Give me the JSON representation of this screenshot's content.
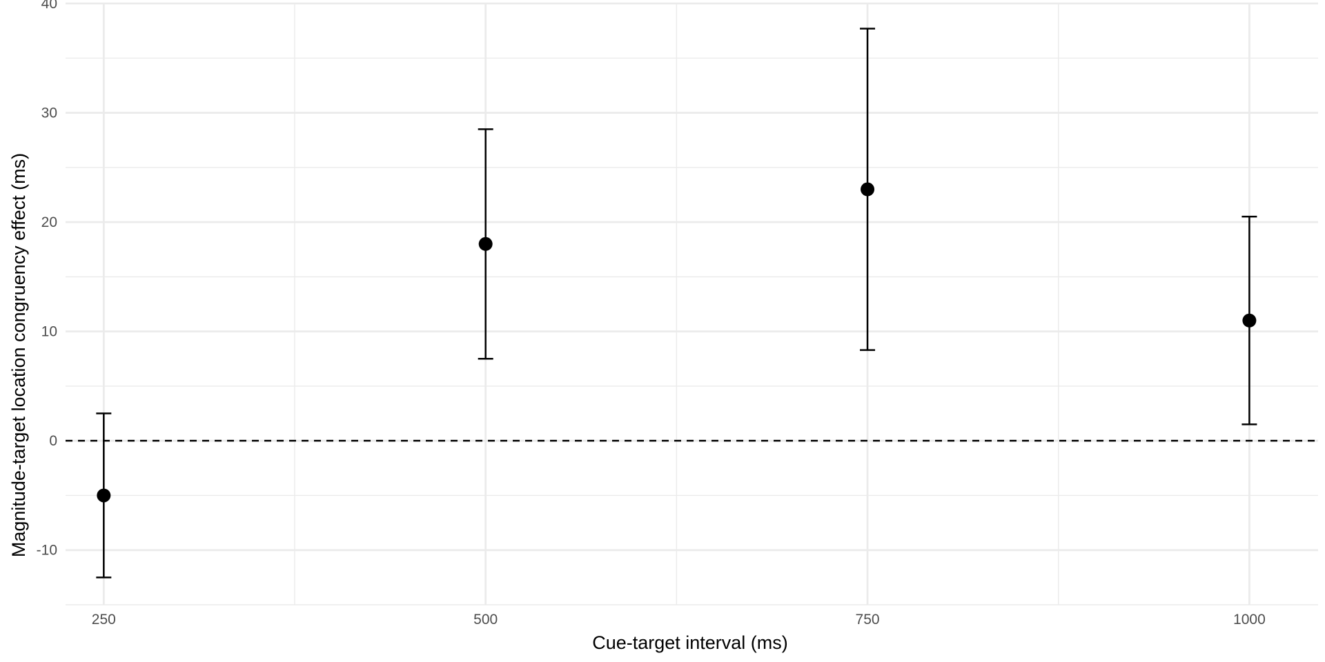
{
  "chart_data": {
    "type": "scatter",
    "title": "",
    "xlabel": "Cue-target interval (ms)",
    "ylabel": "Magnitude-target location congruency effect (ms)",
    "x_ticks": [
      250,
      500,
      750,
      1000
    ],
    "y_ticks": [
      -10,
      0,
      10,
      20,
      30,
      40
    ],
    "xlim": [
      225,
      1045
    ],
    "ylim": [
      -15,
      40
    ],
    "grid": true,
    "legend": "none",
    "reference_line": {
      "y": 0,
      "style": "dashed"
    },
    "points": [
      {
        "x": 250,
        "y": -5,
        "lower": -12.5,
        "upper": 2.5
      },
      {
        "x": 500,
        "y": 18,
        "lower": 7.5,
        "upper": 28.5
      },
      {
        "x": 750,
        "y": 23,
        "lower": 8.3,
        "upper": 37.7
      },
      {
        "x": 1000,
        "y": 11,
        "lower": 1.5,
        "upper": 20.5
      }
    ],
    "colors": {
      "point": "#000000",
      "errorbar": "#000000",
      "grid": "#ebebeb",
      "reference_line": "#000000",
      "background": "#ffffff"
    }
  }
}
